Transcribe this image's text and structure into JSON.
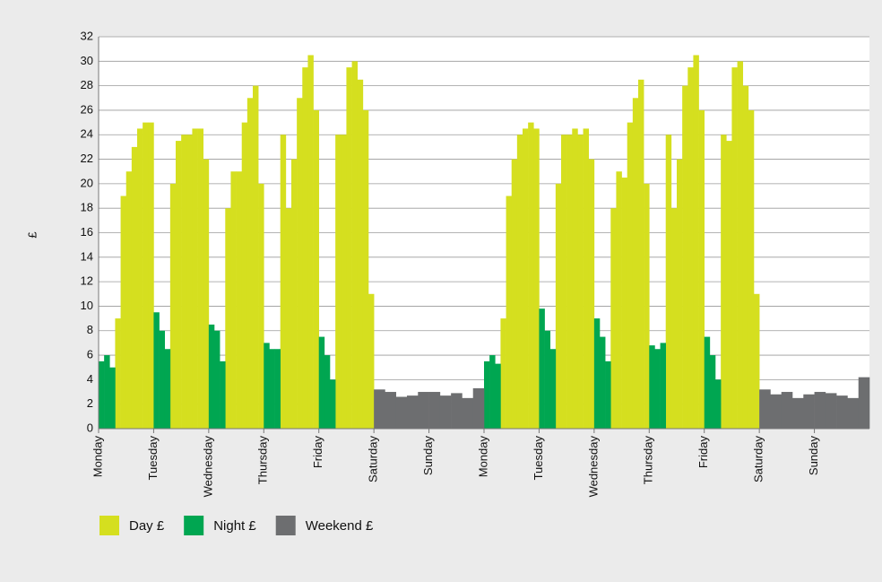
{
  "chart_data": {
    "type": "bar",
    "y_label": "£",
    "xlim": [
      0,
      14
    ],
    "xticks": [
      {
        "value": 0,
        "label": "Monday"
      },
      {
        "value": 1,
        "label": "Tuesday"
      },
      {
        "value": 2,
        "label": "Wednesday"
      },
      {
        "value": 3,
        "label": "Thursday"
      },
      {
        "value": 4,
        "label": "Friday"
      },
      {
        "value": 5,
        "label": "Saturday"
      },
      {
        "value": 6,
        "label": "Sunday"
      },
      {
        "value": 7,
        "label": "Monday"
      },
      {
        "value": 8,
        "label": "Tuesday"
      },
      {
        "value": 9,
        "label": "Wednesday"
      },
      {
        "value": 10,
        "label": "Thursday"
      },
      {
        "value": 11,
        "label": "Friday"
      },
      {
        "value": 12,
        "label": "Saturday"
      },
      {
        "value": 13,
        "label": "Sunday"
      }
    ],
    "ylim": [
      0,
      32
    ],
    "yticks": [
      0,
      2,
      4,
      6,
      8,
      10,
      12,
      14,
      16,
      18,
      20,
      22,
      24,
      26,
      28,
      30,
      32
    ],
    "grid": true,
    "series": [
      {
        "name": "Day £",
        "color": "#d5df1f",
        "x": [
          0.35,
          0.45,
          0.55,
          0.65,
          0.75,
          0.85,
          0.95,
          1.35,
          1.45,
          1.55,
          1.65,
          1.75,
          1.85,
          1.95,
          2.35,
          2.45,
          2.55,
          2.65,
          2.75,
          2.85,
          2.95,
          3.35,
          3.45,
          3.55,
          3.65,
          3.75,
          3.85,
          3.95,
          4.35,
          4.45,
          4.55,
          4.65,
          4.75,
          4.85,
          4.95,
          7.35,
          7.45,
          7.55,
          7.65,
          7.75,
          7.85,
          7.95,
          8.35,
          8.45,
          8.55,
          8.65,
          8.75,
          8.85,
          8.95,
          9.35,
          9.45,
          9.55,
          9.65,
          9.75,
          9.85,
          9.95,
          10.35,
          10.45,
          10.55,
          10.65,
          10.75,
          10.85,
          10.95,
          11.35,
          11.45,
          11.55,
          11.65,
          11.75,
          11.85,
          11.95
        ],
        "values": [
          9,
          19,
          21,
          23,
          24.5,
          25,
          25,
          20,
          23.5,
          24,
          24,
          24.5,
          24.5,
          22,
          18,
          21,
          21,
          25,
          27,
          28,
          20,
          24,
          18,
          22,
          27,
          29.5,
          30.5,
          26,
          24,
          24,
          29.5,
          30,
          28.5,
          26,
          11,
          9,
          19,
          22,
          24,
          24.5,
          25,
          24.5,
          20,
          24,
          24,
          24.5,
          24,
          24.5,
          22,
          18,
          21,
          20.5,
          25,
          27,
          28.5,
          20,
          24,
          18,
          22,
          28,
          29.5,
          30.5,
          26,
          24,
          23.5,
          29.5,
          30,
          28,
          26,
          11
        ]
      },
      {
        "name": "Night £",
        "color": "#00a651",
        "x": [
          0.05,
          0.15,
          0.25,
          1.05,
          1.15,
          1.25,
          2.05,
          2.15,
          2.25,
          3.05,
          3.15,
          3.25,
          4.05,
          4.15,
          4.25,
          7.05,
          7.15,
          7.25,
          8.05,
          8.15,
          8.25,
          9.05,
          9.15,
          9.25,
          10.05,
          10.15,
          10.25,
          11.05,
          11.15,
          11.25
        ],
        "values": [
          5.5,
          6,
          5,
          9.5,
          8,
          6.5,
          8.5,
          8,
          5.5,
          7,
          6.5,
          6.5,
          7.5,
          6,
          4,
          5.5,
          6,
          5.3,
          9.8,
          8,
          6.5,
          9,
          7.5,
          5.5,
          6.8,
          6.5,
          7,
          7.5,
          6,
          4
        ]
      },
      {
        "name": "Weekend £",
        "color": "#6d6e70",
        "x": [
          5.1,
          5.3,
          5.5,
          5.7,
          5.9,
          6.1,
          6.3,
          6.5,
          6.7,
          6.9,
          12.1,
          12.3,
          12.5,
          12.7,
          12.9,
          13.1,
          13.3,
          13.5,
          13.7,
          13.9
        ],
        "values": [
          3.2,
          3,
          2.6,
          2.7,
          3,
          3,
          2.7,
          2.9,
          2.5,
          3.3,
          3.2,
          2.8,
          3,
          2.5,
          2.8,
          3,
          2.9,
          2.7,
          2.5,
          4.2
        ]
      }
    ]
  }
}
